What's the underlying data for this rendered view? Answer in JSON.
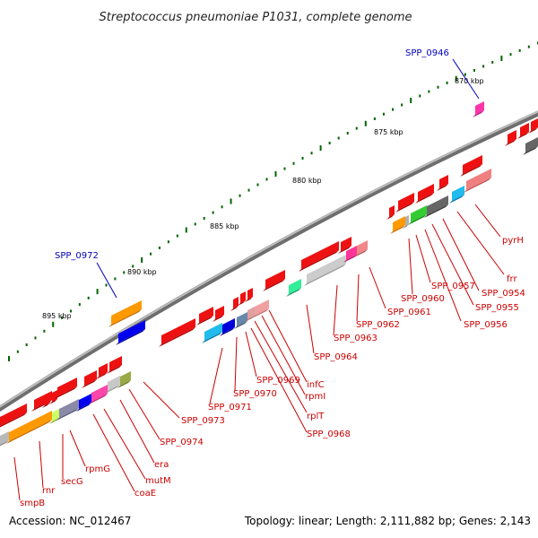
{
  "title": "Streptococcus pneumoniae P1031, complete genome",
  "footer": {
    "accession": "Accession: NC_012467",
    "summary": "Topology: linear; Length: 2,111,882 bp; Genes: 2,143"
  },
  "colors": {
    "backbone": "#808080",
    "label_red": "#cc0000",
    "label_blue": "#0000bb",
    "tick_green": "#006600"
  },
  "scale_labels": [
    "870 kbp",
    "875 kbp",
    "880 kbp",
    "885 kbp",
    "890 kbp",
    "895 kbp"
  ],
  "gene_labels": [
    "SPP_0946",
    "SPP_0972",
    "pyrH",
    "frr",
    "SPP_0954",
    "SPP_0955",
    "SPP_0956",
    "SPP_0957",
    "SPP_0960",
    "SPP_0961",
    "SPP_0962",
    "SPP_0963",
    "SPP_0964",
    "infC",
    "rpmI",
    "rplT",
    "SPP_0968",
    "SPP_0969",
    "SPP_0970",
    "SPP_0971",
    "SPP_0973",
    "SPP_0974",
    "era",
    "mutM",
    "coaE",
    "rpmG",
    "secG",
    "rnr",
    "smpB"
  ]
}
